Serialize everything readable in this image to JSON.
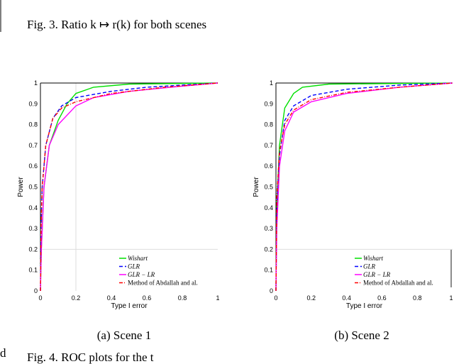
{
  "header_caption": "Fig. 3.   Ratio k ↦ r(k) for both scenes",
  "footer_caption": "Fig. 4.   ROC plots for the t",
  "margin_letter": "d",
  "chart_data": [
    {
      "type": "line",
      "caption": "(a) Scene 1",
      "xlabel": "Type I error",
      "ylabel": "Power",
      "xlim": [
        0,
        1
      ],
      "ylim": [
        0,
        1
      ],
      "xticks": [
        "0",
        "0.2",
        "0.4",
        "0.6",
        "0.8",
        "1"
      ],
      "yticks": [
        "0",
        "0.1",
        "0.2",
        "0.3",
        "0.4",
        "0.5",
        "0.6",
        "0.7",
        "0.8",
        "0.9",
        "1"
      ],
      "grid": "lines at x=0.2 and y=0.2",
      "legend_placement": "bottom-right",
      "series": [
        {
          "name": "Wishart",
          "color": "#00e000",
          "dash": "solid",
          "points": [
            [
              0,
              0
            ],
            [
              0.005,
              0.2
            ],
            [
              0.02,
              0.5
            ],
            [
              0.05,
              0.7
            ],
            [
              0.1,
              0.82
            ],
            [
              0.15,
              0.9
            ],
            [
              0.2,
              0.95
            ],
            [
              0.3,
              0.98
            ],
            [
              0.5,
              0.995
            ],
            [
              1,
              1
            ]
          ]
        },
        {
          "name": "GLR",
          "color": "#0000ff",
          "dash": "dashed",
          "points": [
            [
              0,
              0
            ],
            [
              0.003,
              0.3
            ],
            [
              0.01,
              0.5
            ],
            [
              0.03,
              0.7
            ],
            [
              0.07,
              0.83
            ],
            [
              0.12,
              0.89
            ],
            [
              0.2,
              0.93
            ],
            [
              0.4,
              0.96
            ],
            [
              0.6,
              0.98
            ],
            [
              1,
              1
            ]
          ]
        },
        {
          "name": "GLR − LR",
          "color": "#ff00ff",
          "dash": "solid",
          "points": [
            [
              0,
              0
            ],
            [
              0.005,
              0.2
            ],
            [
              0.02,
              0.5
            ],
            [
              0.05,
              0.7
            ],
            [
              0.1,
              0.8
            ],
            [
              0.2,
              0.89
            ],
            [
              0.3,
              0.93
            ],
            [
              0.5,
              0.96
            ],
            [
              0.8,
              0.985
            ],
            [
              1,
              1
            ]
          ]
        },
        {
          "name": "Method of Abdallah and al.",
          "color": "#ff0000",
          "dash": "dashdot",
          "points": [
            [
              0,
              0
            ],
            [
              0.003,
              0.3
            ],
            [
              0.01,
              0.5
            ],
            [
              0.03,
              0.7
            ],
            [
              0.07,
              0.83
            ],
            [
              0.12,
              0.88
            ],
            [
              0.2,
              0.91
            ],
            [
              0.4,
              0.95
            ],
            [
              0.7,
              0.98
            ],
            [
              1,
              1
            ]
          ]
        }
      ]
    },
    {
      "type": "line",
      "caption": "(b) Scene 2",
      "xlabel": "Type I error",
      "ylabel": "Power",
      "xlim": [
        0,
        1
      ],
      "ylim": [
        0,
        1
      ],
      "xticks": [
        "0",
        "0.2",
        "0.4",
        "0.6",
        "0.8",
        "1"
      ],
      "yticks": [
        "0",
        "0.1",
        "0.2",
        "0.3",
        "0.4",
        "0.5",
        "0.6",
        "0.7",
        "0.8",
        "0.9",
        "1"
      ],
      "grid": "line at y=0.2",
      "legend_placement": "bottom-right",
      "series": [
        {
          "name": "Wishart",
          "color": "#00e000",
          "dash": "solid",
          "points": [
            [
              0,
              0
            ],
            [
              0.005,
              0.4
            ],
            [
              0.02,
              0.7
            ],
            [
              0.05,
              0.88
            ],
            [
              0.1,
              0.95
            ],
            [
              0.15,
              0.98
            ],
            [
              0.3,
              0.995
            ],
            [
              1,
              1
            ]
          ]
        },
        {
          "name": "GLR",
          "color": "#0000ff",
          "dash": "dashed",
          "points": [
            [
              0,
              0
            ],
            [
              0.005,
              0.4
            ],
            [
              0.02,
              0.65
            ],
            [
              0.05,
              0.82
            ],
            [
              0.1,
              0.89
            ],
            [
              0.2,
              0.94
            ],
            [
              0.4,
              0.97
            ],
            [
              0.7,
              0.99
            ],
            [
              1,
              1
            ]
          ]
        },
        {
          "name": "GLR − LR",
          "color": "#ff00ff",
          "dash": "solid",
          "points": [
            [
              0,
              0
            ],
            [
              0.005,
              0.3
            ],
            [
              0.02,
              0.6
            ],
            [
              0.05,
              0.77
            ],
            [
              0.1,
              0.86
            ],
            [
              0.2,
              0.91
            ],
            [
              0.4,
              0.95
            ],
            [
              0.7,
              0.98
            ],
            [
              1,
              1
            ]
          ]
        },
        {
          "name": "Method of Abdallah and al.",
          "color": "#ff0000",
          "dash": "dashdot",
          "points": [
            [
              0,
              0
            ],
            [
              0.005,
              0.45
            ],
            [
              0.02,
              0.67
            ],
            [
              0.05,
              0.8
            ],
            [
              0.1,
              0.87
            ],
            [
              0.2,
              0.92
            ],
            [
              0.4,
              0.955
            ],
            [
              0.7,
              0.98
            ],
            [
              1,
              1
            ]
          ]
        }
      ]
    }
  ]
}
